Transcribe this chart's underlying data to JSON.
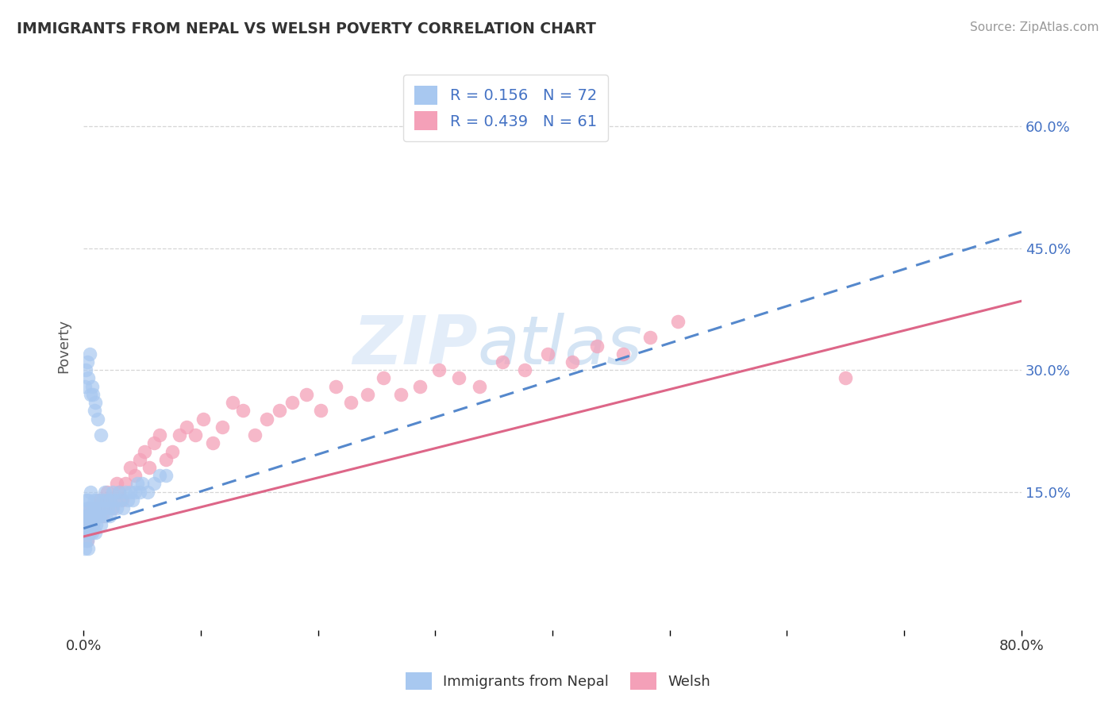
{
  "title": "IMMIGRANTS FROM NEPAL VS WELSH POVERTY CORRELATION CHART",
  "source_text": "Source: ZipAtlas.com",
  "ylabel": "Poverty",
  "xlim": [
    0.0,
    0.8
  ],
  "ylim": [
    -0.02,
    0.68
  ],
  "ytick_positions": [
    0.15,
    0.3,
    0.45,
    0.6
  ],
  "ytick_labels": [
    "15.0%",
    "30.0%",
    "45.0%",
    "60.0%"
  ],
  "nepal_color": "#a8c8f0",
  "welsh_color": "#f4a0b8",
  "nepal_R": 0.156,
  "nepal_N": 72,
  "welsh_R": 0.439,
  "welsh_N": 61,
  "nepal_scatter_x": [
    0.0005,
    0.001,
    0.001,
    0.0015,
    0.002,
    0.002,
    0.002,
    0.0025,
    0.003,
    0.003,
    0.003,
    0.004,
    0.004,
    0.004,
    0.005,
    0.005,
    0.005,
    0.006,
    0.006,
    0.007,
    0.007,
    0.008,
    0.008,
    0.009,
    0.009,
    0.01,
    0.01,
    0.011,
    0.012,
    0.012,
    0.013,
    0.014,
    0.015,
    0.016,
    0.017,
    0.018,
    0.019,
    0.02,
    0.021,
    0.022,
    0.023,
    0.024,
    0.025,
    0.027,
    0.028,
    0.03,
    0.032,
    0.034,
    0.036,
    0.038,
    0.04,
    0.042,
    0.044,
    0.046,
    0.048,
    0.05,
    0.055,
    0.06,
    0.065,
    0.07,
    0.001,
    0.002,
    0.003,
    0.004,
    0.005,
    0.006,
    0.007,
    0.008,
    0.009,
    0.01,
    0.012,
    0.015
  ],
  "nepal_scatter_y": [
    0.1,
    0.08,
    0.12,
    0.09,
    0.11,
    0.14,
    0.1,
    0.12,
    0.09,
    0.13,
    0.11,
    0.1,
    0.14,
    0.08,
    0.12,
    0.1,
    0.13,
    0.11,
    0.15,
    0.12,
    0.1,
    0.13,
    0.11,
    0.12,
    0.14,
    0.1,
    0.13,
    0.11,
    0.12,
    0.14,
    0.13,
    0.12,
    0.11,
    0.14,
    0.13,
    0.15,
    0.12,
    0.14,
    0.13,
    0.12,
    0.14,
    0.13,
    0.15,
    0.14,
    0.13,
    0.15,
    0.14,
    0.13,
    0.15,
    0.14,
    0.15,
    0.14,
    0.15,
    0.16,
    0.15,
    0.16,
    0.15,
    0.16,
    0.17,
    0.17,
    0.28,
    0.3,
    0.31,
    0.29,
    0.32,
    0.27,
    0.28,
    0.27,
    0.25,
    0.26,
    0.24,
    0.22
  ],
  "welsh_scatter_x": [
    0.001,
    0.002,
    0.003,
    0.004,
    0.005,
    0.006,
    0.007,
    0.008,
    0.01,
    0.012,
    0.014,
    0.016,
    0.018,
    0.02,
    0.022,
    0.025,
    0.028,
    0.03,
    0.033,
    0.036,
    0.04,
    0.044,
    0.048,
    0.052,
    0.056,
    0.06,
    0.065,
    0.07,
    0.076,
    0.082,
    0.088,
    0.095,
    0.102,
    0.11,
    0.118,
    0.127,
    0.136,
    0.146,
    0.156,
    0.167,
    0.178,
    0.19,
    0.202,
    0.215,
    0.228,
    0.242,
    0.256,
    0.271,
    0.287,
    0.303,
    0.32,
    0.338,
    0.357,
    0.376,
    0.396,
    0.417,
    0.438,
    0.46,
    0.483,
    0.507,
    0.65
  ],
  "welsh_scatter_y": [
    0.1,
    0.12,
    0.09,
    0.11,
    0.1,
    0.13,
    0.12,
    0.11,
    0.12,
    0.13,
    0.14,
    0.12,
    0.13,
    0.15,
    0.14,
    0.13,
    0.16,
    0.15,
    0.14,
    0.16,
    0.18,
    0.17,
    0.19,
    0.2,
    0.18,
    0.21,
    0.22,
    0.19,
    0.2,
    0.22,
    0.23,
    0.22,
    0.24,
    0.21,
    0.23,
    0.26,
    0.25,
    0.22,
    0.24,
    0.25,
    0.26,
    0.27,
    0.25,
    0.28,
    0.26,
    0.27,
    0.29,
    0.27,
    0.28,
    0.3,
    0.29,
    0.28,
    0.31,
    0.3,
    0.32,
    0.31,
    0.33,
    0.32,
    0.34,
    0.36,
    0.29
  ],
  "nepal_trend_x0": 0.0,
  "nepal_trend_x1": 0.8,
  "nepal_trend_y0": 0.105,
  "nepal_trend_y1": 0.47,
  "welsh_trend_x0": 0.0,
  "welsh_trend_x1": 0.8,
  "welsh_trend_y0": 0.095,
  "welsh_trend_y1": 0.385,
  "watermark": "ZIPatlas",
  "legend_nepal_label": "Immigrants from Nepal",
  "legend_welsh_label": "Welsh",
  "background_color": "#ffffff",
  "grid_color": "#cccccc",
  "title_color": "#333333",
  "axis_label_color": "#555555",
  "source_color": "#999999",
  "nepal_line_color": "#5588cc",
  "welsh_line_color": "#dd6688"
}
